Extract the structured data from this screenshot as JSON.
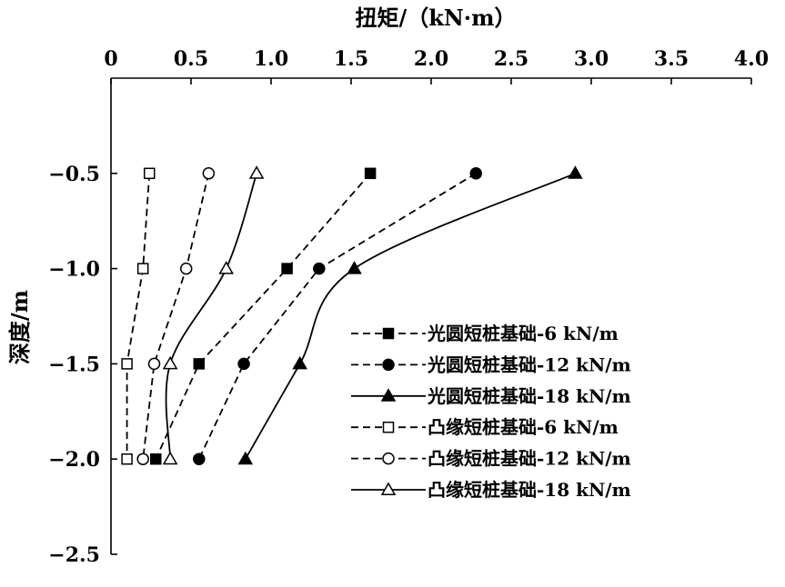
{
  "chart_data": {
    "type": "line",
    "title": "",
    "xlabel": "扭矩/（kN·m）",
    "ylabel": "深度/m",
    "xlim": [
      0,
      4.0
    ],
    "ylim": [
      -2.5,
      0
    ],
    "x_axis_position": "top",
    "x_ticks": [
      0,
      0.5,
      1.0,
      1.5,
      2.0,
      2.5,
      3.0,
      3.5,
      4.0
    ],
    "x_tick_labels": [
      "0",
      "0.5",
      "1.0",
      "1.5",
      "2.0",
      "2.5",
      "3.0",
      "3.5",
      "4.0"
    ],
    "y_ticks": [
      -0.5,
      -1.0,
      -1.5,
      -2.0,
      -2.5
    ],
    "y_tick_labels": [
      "−0.5",
      "−1.0",
      "−1.5",
      "−2.0",
      "−2.5"
    ],
    "grid": false,
    "legend_position": "right",
    "series": [
      {
        "name": "光圆短桩基础-6 kN/m",
        "marker": "square-filled",
        "line": "dashed",
        "points": [
          [
            1.62,
            -0.5
          ],
          [
            1.1,
            -1.0
          ],
          [
            0.55,
            -1.5
          ],
          [
            0.28,
            -2.0
          ]
        ]
      },
      {
        "name": "光圆短桩基础-12 kN/m",
        "marker": "circle-filled",
        "line": "dashed",
        "points": [
          [
            2.28,
            -0.5
          ],
          [
            1.3,
            -1.0
          ],
          [
            0.83,
            -1.5
          ],
          [
            0.55,
            -2.0
          ]
        ]
      },
      {
        "name": "光圆短桩基础-18 kN/m",
        "marker": "triangle-filled",
        "line": "solid",
        "points": [
          [
            2.9,
            -0.5
          ],
          [
            1.52,
            -1.0
          ],
          [
            1.18,
            -1.5
          ],
          [
            0.84,
            -2.0
          ]
        ]
      },
      {
        "name": "凸缘短桩基础-6 kN/m",
        "marker": "square-open",
        "line": "dashed",
        "points": [
          [
            0.24,
            -0.5
          ],
          [
            0.2,
            -1.0
          ],
          [
            0.1,
            -1.5
          ],
          [
            0.1,
            -2.0
          ]
        ]
      },
      {
        "name": "凸缘短桩基础-12 kN/m",
        "marker": "circle-open",
        "line": "dashed",
        "points": [
          [
            0.61,
            -0.5
          ],
          [
            0.47,
            -1.0
          ],
          [
            0.27,
            -1.5
          ],
          [
            0.2,
            -2.0
          ]
        ]
      },
      {
        "name": "凸缘短桩基础-18 kN/m",
        "marker": "triangle-open",
        "line": "solid",
        "points": [
          [
            0.91,
            -0.5
          ],
          [
            0.72,
            -1.0
          ],
          [
            0.37,
            -1.5
          ],
          [
            0.37,
            -2.0
          ]
        ]
      }
    ]
  }
}
